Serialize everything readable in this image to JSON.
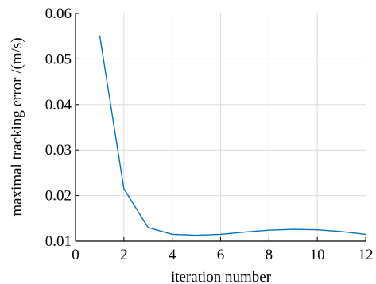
{
  "chart_data": {
    "type": "line",
    "xlabel": "iteration number",
    "ylabel": "maximal tracking error /(m/s)",
    "xlim": [
      0,
      12
    ],
    "ylim": [
      0.01,
      0.06
    ],
    "xticks": [
      0,
      2,
      4,
      6,
      8,
      10,
      12
    ],
    "yticks": [
      0.01,
      0.02,
      0.03,
      0.04,
      0.05,
      0.06
    ],
    "xtick_labels": [
      "0",
      "2",
      "4",
      "6",
      "8",
      "10",
      "12"
    ],
    "ytick_labels": [
      "0.01",
      "0.02",
      "0.03",
      "0.04",
      "0.05",
      "0.06"
    ],
    "grid": true,
    "series": [
      {
        "color": "#0072bd",
        "x": [
          1,
          2,
          3,
          4,
          5,
          6,
          7,
          8,
          9,
          10,
          11,
          12
        ],
        "y": [
          0.0552,
          0.0215,
          0.013,
          0.0115,
          0.0113,
          0.0115,
          0.012,
          0.0124,
          0.0126,
          0.0125,
          0.0121,
          0.0115
        ]
      }
    ]
  }
}
